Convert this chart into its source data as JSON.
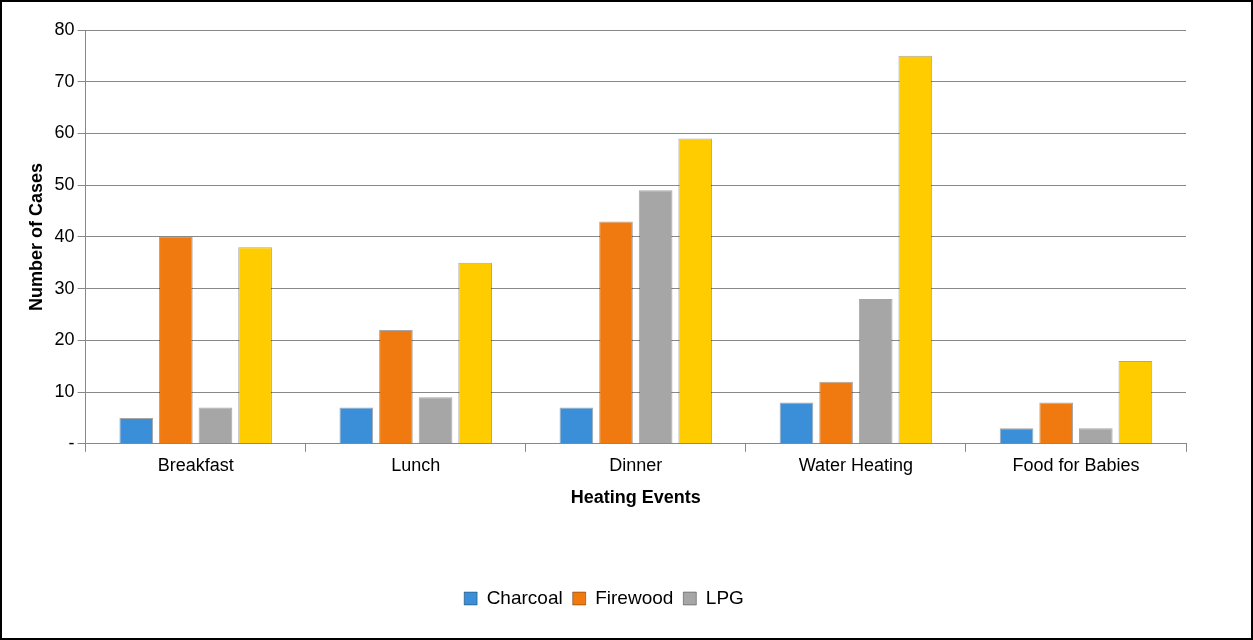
{
  "chart_data": {
    "type": "bar",
    "xlabel": "Heating Events",
    "ylabel": "Number of Cases",
    "categories": [
      "Breakfast",
      "Lunch",
      "Dinner",
      "Water Heating",
      "Food for Babies"
    ],
    "series": [
      {
        "name": "Charcoal",
        "color": "#3a8fd8",
        "values": [
          5,
          7,
          7,
          8,
          3
        ]
      },
      {
        "name": "Firewood",
        "color": "#f07a10",
        "values": [
          40,
          22,
          43,
          12,
          8
        ]
      },
      {
        "name": "LPG",
        "color": "#a6a6a6",
        "values": [
          7,
          9,
          49,
          28,
          3
        ]
      },
      {
        "color": "#ffcc00",
        "values": [
          38,
          35,
          59,
          75,
          16
        ]
      }
    ],
    "ylim": [
      0,
      80
    ],
    "yticks": [
      {
        "value": 0,
        "label": "-"
      },
      10,
      20,
      30,
      40,
      50,
      60,
      70,
      80
    ],
    "grid": "y",
    "legend": "bottom"
  }
}
